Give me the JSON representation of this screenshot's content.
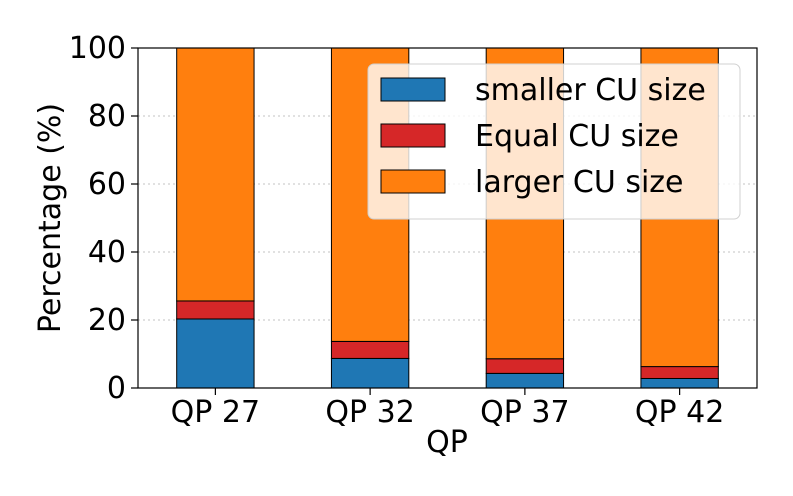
{
  "chart_data": {
    "type": "bar",
    "stacked": true,
    "categories": [
      "QP 27",
      "QP 32",
      "QP 37",
      "QP 42"
    ],
    "series": [
      {
        "name": "smaller CU size",
        "color": "#1f77b4",
        "values": [
          20.3,
          8.7,
          4.3,
          2.8
        ]
      },
      {
        "name": "Equal CU size",
        "color": "#d62728",
        "values": [
          5.3,
          5.0,
          4.3,
          3.5
        ]
      },
      {
        "name": "larger CU size",
        "color": "#ff7f0e",
        "values": [
          74.4,
          86.3,
          91.4,
          93.7
        ]
      }
    ],
    "xlabel": "QP",
    "ylabel": "Percentage (%)",
    "ylim": [
      0,
      100
    ],
    "yticks": [
      0,
      20,
      40,
      60,
      80,
      100
    ],
    "grid": "horizontal-dotted",
    "legend_position": "top-right"
  }
}
